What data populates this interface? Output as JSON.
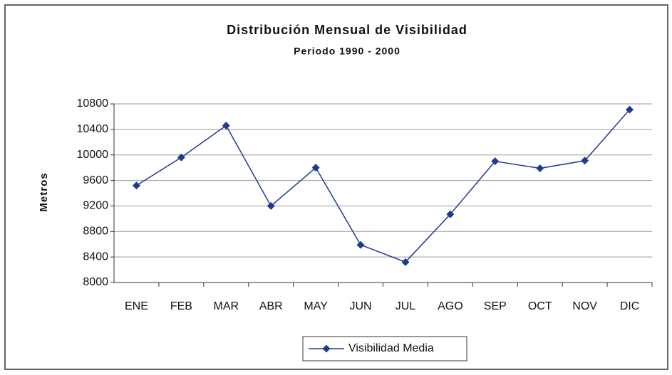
{
  "chart_data": {
    "type": "line",
    "title": "Distribución Mensual de Visibilidad",
    "subtitle": "Periodo 1990 - 2000",
    "y_label": "Metros",
    "categories": [
      "ENE",
      "FEB",
      "MAR",
      "ABR",
      "MAY",
      "JUN",
      "JUL",
      "AGO",
      "SEP",
      "OCT",
      "NOV",
      "DIC"
    ],
    "series": [
      {
        "name": "Visibilidad Media",
        "color": "#1f3b8c",
        "values": [
          9520,
          9960,
          10460,
          9200,
          9800,
          8590,
          8320,
          9070,
          9900,
          9790,
          9910,
          10710
        ]
      }
    ],
    "ylim": [
      8000,
      10800
    ],
    "yticks": [
      8000,
      8400,
      8800,
      9200,
      9600,
      10000,
      10400,
      10800
    ],
    "grid": true,
    "legend": "bottom"
  }
}
